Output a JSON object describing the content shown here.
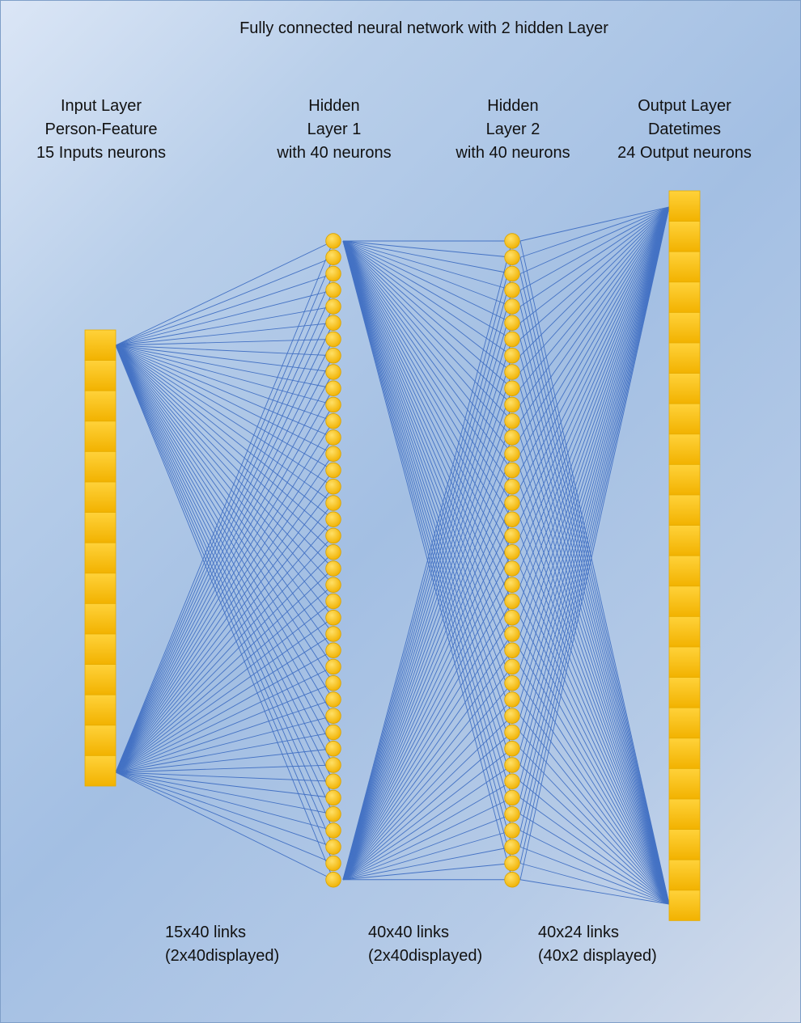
{
  "title": "Fully connected neural network with 2 hidden Layer",
  "layers": [
    {
      "line1": "Input Layer",
      "line2": "Person-Feature",
      "line3": "15 Inputs neurons",
      "neurons": 15,
      "shape": "box"
    },
    {
      "line1": "Hidden",
      "line2": "Layer 1",
      "line3": "with 40 neurons",
      "neurons": 40,
      "shape": "circle"
    },
    {
      "line1": "Hidden",
      "line2": "Layer 2",
      "line3": "with 40 neurons",
      "neurons": 40,
      "shape": "circle"
    },
    {
      "line1": "Output Layer",
      "line2": "Datetimes",
      "line3": "24 Output neurons",
      "neurons": 24,
      "shape": "box"
    }
  ],
  "links": [
    {
      "count": "15x40 links",
      "displayed": "(2x40displayed)"
    },
    {
      "count": "40x40 links",
      "displayed": "(2x40displayed)"
    },
    {
      "count": "40x24 links",
      "displayed": "(40x2 displayed)"
    }
  ],
  "colors": {
    "neuron": "#ffc000",
    "neuron_edge": "#d9a300",
    "link": "#4472c4"
  }
}
